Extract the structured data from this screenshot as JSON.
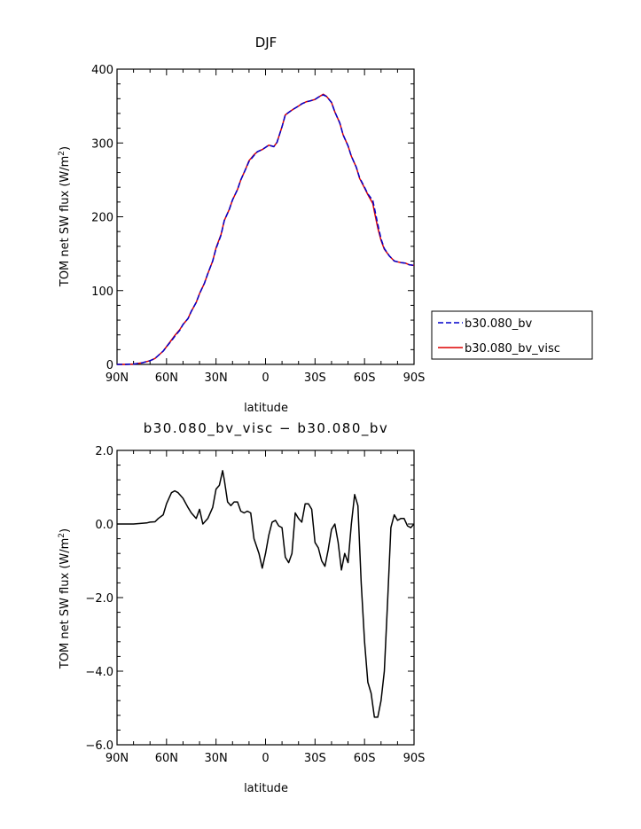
{
  "chart_data": [
    {
      "type": "line",
      "title": "DJF",
      "xlabel": "latitude",
      "ylabel": "TOM net SW flux (W/m",
      "ylabel_sup": "2",
      "ylabel_end": ")",
      "xlim": [
        90,
        -90
      ],
      "ylim": [
        0,
        400
      ],
      "xticks": [
        {
          "value": 90,
          "label": "90N"
        },
        {
          "value": 60,
          "label": "60N"
        },
        {
          "value": 30,
          "label": "30N"
        },
        {
          "value": 0,
          "label": "0"
        },
        {
          "value": -30,
          "label": "30S"
        },
        {
          "value": -60,
          "label": "60S"
        },
        {
          "value": -90,
          "label": "90S"
        }
      ],
      "yticks": [
        {
          "value": 0,
          "label": "0"
        },
        {
          "value": 100,
          "label": "100"
        },
        {
          "value": 200,
          "label": "200"
        },
        {
          "value": 300,
          "label": "300"
        },
        {
          "value": 400,
          "label": "400"
        }
      ],
      "grid": false,
      "legend_position": "right",
      "series": [
        {
          "name": "b30.080_bv",
          "color": "#0000cc",
          "dash": "dashed",
          "x": [
            90,
            85,
            80,
            75,
            70,
            67,
            65,
            62,
            60,
            57,
            55,
            52,
            50,
            47,
            45,
            42,
            40,
            37,
            35,
            32,
            30,
            27,
            25,
            22,
            20,
            17,
            15,
            12,
            10,
            7,
            5,
            2,
            0,
            -2,
            -5,
            -7,
            -10,
            -12,
            -15,
            -17,
            -20,
            -22,
            -25,
            -27,
            -30,
            -32,
            -35,
            -37,
            -40,
            -42,
            -45,
            -47,
            -50,
            -52,
            -55,
            -57,
            -60,
            -62,
            -65,
            -66,
            -68,
            -70,
            -72,
            -75,
            -78,
            -80,
            -82,
            -85,
            -87,
            -90
          ],
          "y": [
            0,
            0,
            0.5,
            2,
            5,
            8,
            12,
            18,
            24,
            32,
            38,
            46,
            54,
            62,
            72,
            84,
            96,
            110,
            123,
            140,
            157,
            175,
            195,
            210,
            223,
            237,
            250,
            265,
            275,
            283,
            288,
            291,
            294,
            297,
            295,
            301,
            322,
            338,
            343,
            346,
            350,
            353,
            356,
            357,
            359,
            362,
            365,
            363,
            355,
            342,
            327,
            311,
            296,
            282,
            267,
            253,
            240,
            231,
            222,
            212,
            190,
            170,
            157,
            147,
            140,
            139,
            138,
            137,
            135,
            134
          ]
        },
        {
          "name": "b30.080_bv_visc",
          "color": "#dd0000",
          "dash": "solid",
          "x": [
            90,
            85,
            80,
            75,
            70,
            67,
            65,
            62,
            60,
            57,
            55,
            52,
            50,
            47,
            45,
            42,
            40,
            37,
            35,
            32,
            30,
            27,
            25,
            22,
            20,
            17,
            15,
            12,
            10,
            7,
            5,
            2,
            0,
            -2,
            -5,
            -7,
            -10,
            -12,
            -15,
            -17,
            -20,
            -22,
            -25,
            -27,
            -30,
            -32,
            -35,
            -37,
            -40,
            -42,
            -45,
            -47,
            -50,
            -52,
            -55,
            -57,
            -60,
            -62,
            -65,
            -66,
            -68,
            -70,
            -72,
            -75,
            -78,
            -80,
            -82,
            -85,
            -87,
            -90
          ],
          "y": [
            0,
            0,
            0.5,
            2,
            5,
            8,
            12,
            18,
            24,
            33,
            39,
            47,
            54,
            62,
            72,
            84,
            96,
            110,
            123,
            140,
            158,
            176,
            195,
            210,
            223,
            237,
            250,
            265,
            276,
            284,
            288,
            291,
            294,
            297,
            295,
            301,
            322,
            338,
            343,
            346,
            350,
            353,
            356,
            357,
            359,
            362,
            366,
            363,
            355,
            342,
            327,
            311,
            296,
            282,
            267,
            252,
            239,
            230,
            218,
            207,
            185,
            168,
            156,
            147,
            140,
            139,
            138,
            137,
            135,
            134
          ]
        }
      ]
    },
    {
      "type": "line",
      "title": "b30.080_bv_visc − b30.080_bv",
      "xlabel": "latitude",
      "ylabel": "TOM net SW flux (W/m",
      "ylabel_sup": "2",
      "ylabel_end": ")",
      "xlim": [
        90,
        -90
      ],
      "ylim": [
        -6,
        2
      ],
      "xticks": [
        {
          "value": 90,
          "label": "90N"
        },
        {
          "value": 60,
          "label": "60N"
        },
        {
          "value": 30,
          "label": "30N"
        },
        {
          "value": 0,
          "label": "0"
        },
        {
          "value": -30,
          "label": "30S"
        },
        {
          "value": -60,
          "label": "60S"
        },
        {
          "value": -90,
          "label": "90S"
        }
      ],
      "yticks": [
        {
          "value": 2,
          "label": "2.0"
        },
        {
          "value": 0,
          "label": "0.0"
        },
        {
          "value": -2,
          "label": "−2.0"
        },
        {
          "value": -4,
          "label": "−4.0"
        },
        {
          "value": -6,
          "label": "−6.0"
        }
      ],
      "grid": false,
      "series": [
        {
          "color": "#000000",
          "x": [
            90,
            85,
            80,
            75,
            72,
            70,
            67,
            65,
            62,
            60,
            57,
            55,
            53,
            50,
            47,
            45,
            42,
            40,
            38,
            36,
            35,
            32,
            30,
            28,
            26,
            25,
            23,
            21,
            19,
            17,
            15,
            13,
            11,
            9,
            7,
            4,
            2,
            0,
            -2,
            -4,
            -6,
            -8,
            -10,
            -12,
            -14,
            -16,
            -18,
            -20,
            -22,
            -24,
            -26,
            -28,
            -30,
            -32,
            -34,
            -36,
            -38,
            -40,
            -42,
            -44,
            -46,
            -48,
            -50,
            -52,
            -54,
            -56,
            -58,
            -60,
            -62,
            -64,
            -66,
            -68,
            -70,
            -72,
            -74,
            -76,
            -78,
            -80,
            -82,
            -84,
            -86,
            -88,
            -90
          ],
          "y": [
            0,
            0,
            0,
            0.02,
            0.03,
            0.05,
            0.06,
            0.15,
            0.25,
            0.55,
            0.85,
            0.9,
            0.85,
            0.7,
            0.45,
            0.3,
            0.15,
            0.4,
            0,
            0.1,
            0.15,
            0.45,
            0.95,
            1.05,
            1.45,
            1.2,
            0.6,
            0.5,
            0.6,
            0.6,
            0.35,
            0.3,
            0.35,
            0.3,
            -0.4,
            -0.8,
            -1.2,
            -0.8,
            -0.3,
            0.05,
            0.1,
            -0.05,
            -0.1,
            -0.9,
            -1.05,
            -0.8,
            0.3,
            0.15,
            0.05,
            0.55,
            0.55,
            0.4,
            -0.5,
            -0.65,
            -1.0,
            -1.15,
            -0.7,
            -0.15,
            0,
            -0.5,
            -1.25,
            -0.8,
            -1.05,
            0,
            0.8,
            0.5,
            -1.6,
            -3.2,
            -4.3,
            -4.6,
            -5.25,
            -5.25,
            -4.8,
            -4.0,
            -2.1,
            -0.1,
            0.25,
            0.1,
            0.15,
            0.15,
            -0.05,
            -0.1,
            0
          ]
        }
      ]
    }
  ]
}
